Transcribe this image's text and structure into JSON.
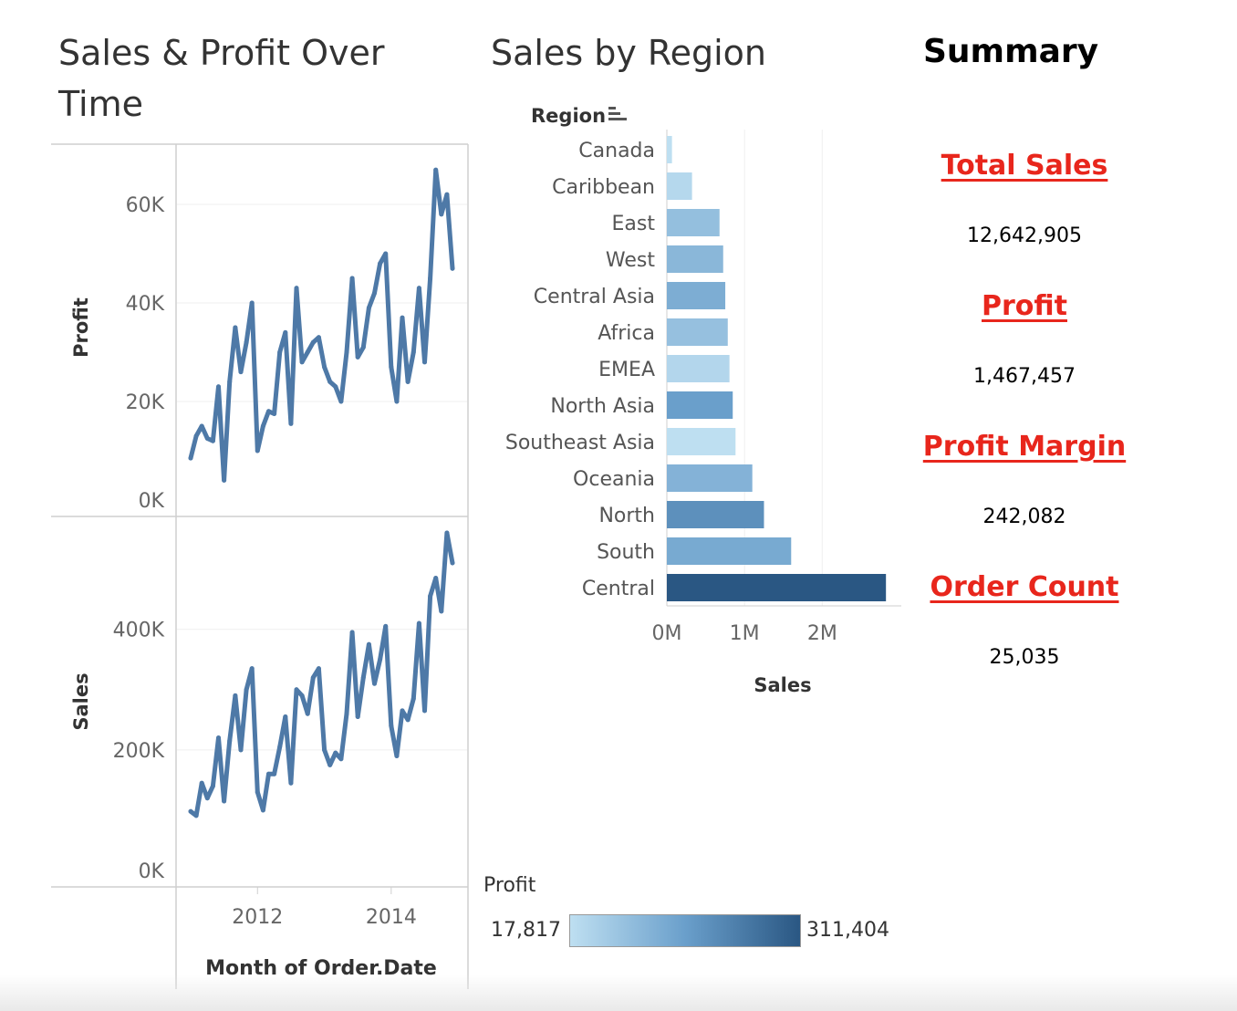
{
  "dashboard": {
    "left_title": "Sales & Profit Over Time",
    "middle_title": "Sales by Region",
    "summary_title": "Summary"
  },
  "summary": {
    "kpis": [
      {
        "label": "Total Sales",
        "value": "12,642,905"
      },
      {
        "label": "Profit",
        "value": "1,467,457"
      },
      {
        "label": "Profit Margin",
        "value": "242,082"
      },
      {
        "label": "Order Count",
        "value": "25,035"
      }
    ]
  },
  "legend": {
    "title": "Profit",
    "min_label": "17,817",
    "max_label": "311,404",
    "color_low": "#bedff1",
    "color_high": "#2a5783"
  },
  "colors": {
    "line": "#4e79a7",
    "kpi_label": "#e8261c",
    "axis": "#cccccc",
    "grid": "#efefef"
  },
  "chart_data": [
    {
      "type": "line",
      "title": "Sales & Profit Over Time",
      "xlabel": "Month of Order.Date",
      "x_ticks": [
        "2012",
        "2014"
      ],
      "x_start": "2011-01",
      "panes": [
        {
          "ylabel": "Profit",
          "ylim": [
            0,
            70000
          ],
          "y_ticks": [
            {
              "v": 0,
              "label": "0K"
            },
            {
              "v": 20000,
              "label": "20K"
            },
            {
              "v": 40000,
              "label": "40K"
            },
            {
              "v": 60000,
              "label": "60K"
            }
          ],
          "values": [
            8500,
            13000,
            15000,
            12500,
            12000,
            23000,
            4000,
            24000,
            35000,
            26000,
            32000,
            40000,
            10000,
            15000,
            18000,
            17500,
            30000,
            34000,
            15500,
            43000,
            28000,
            30000,
            32000,
            33000,
            27000,
            24000,
            23000,
            20000,
            30000,
            45000,
            29000,
            31000,
            39000,
            42000,
            48000,
            50000,
            27000,
            20000,
            37000,
            24000,
            30000,
            43000,
            28000,
            45000,
            67000,
            58000,
            62000,
            47000
          ]
        },
        {
          "ylabel": "Sales",
          "ylim": [
            0,
            560000
          ],
          "y_ticks": [
            {
              "v": 0,
              "label": "0K"
            },
            {
              "v": 200000,
              "label": "200K"
            },
            {
              "v": 400000,
              "label": "400K"
            }
          ],
          "values": [
            98000,
            91000,
            145000,
            120000,
            140000,
            220000,
            115000,
            215000,
            290000,
            200000,
            300000,
            335000,
            130000,
            100000,
            160000,
            160000,
            205000,
            255000,
            145000,
            300000,
            290000,
            260000,
            320000,
            335000,
            200000,
            175000,
            195000,
            185000,
            260000,
            395000,
            255000,
            320000,
            375000,
            310000,
            350000,
            405000,
            240000,
            190000,
            265000,
            250000,
            285000,
            410000,
            265000,
            455000,
            485000,
            430000,
            560000,
            510000
          ]
        }
      ]
    },
    {
      "type": "bar",
      "orientation": "horizontal",
      "title": "Sales by Region",
      "category_header": "Region",
      "xlabel": "Sales",
      "xlim": [
        0,
        2900000
      ],
      "x_ticks": [
        {
          "v": 0,
          "label": "0M"
        },
        {
          "v": 1000000,
          "label": "1M"
        },
        {
          "v": 2000000,
          "label": "2M"
        }
      ],
      "categories": [
        "Canada",
        "Caribbean",
        "East",
        "West",
        "Central Asia",
        "Africa",
        "EMEA",
        "North Asia",
        "Southeast Asia",
        "Oceania",
        "North",
        "South",
        "Central"
      ],
      "values": [
        66000,
        324000,
        678000,
        725000,
        752000,
        784000,
        806000,
        848000,
        884000,
        1100000,
        1250000,
        1600000,
        2820000
      ],
      "profit": [
        17817,
        34000,
        91000,
        109000,
        132000,
        88000,
        37500,
        165000,
        17900,
        120000,
        195000,
        140000,
        311404
      ]
    }
  ]
}
